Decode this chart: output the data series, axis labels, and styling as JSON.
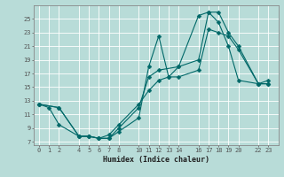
{
  "xlabel": "Humidex (Indice chaleur)",
  "background_color": "#b8dcd8",
  "grid_color": "#ffffff",
  "line_color": "#006868",
  "xlim": [
    -0.5,
    24.0
  ],
  "ylim": [
    6.5,
    27.0
  ],
  "xticks": [
    0,
    1,
    2,
    4,
    5,
    6,
    7,
    8,
    10,
    11,
    12,
    13,
    14,
    16,
    17,
    18,
    19,
    20,
    22,
    23
  ],
  "yticks": [
    7,
    9,
    11,
    13,
    15,
    17,
    19,
    21,
    23,
    25
  ],
  "line1_x": [
    0,
    1,
    2,
    4,
    5,
    6,
    7,
    8,
    10,
    11,
    12,
    13,
    14,
    16,
    17,
    18,
    19,
    20,
    22,
    23
  ],
  "line1_y": [
    12.5,
    12.0,
    9.5,
    7.8,
    7.8,
    7.5,
    7.5,
    8.5,
    10.5,
    18.0,
    22.5,
    16.5,
    18.0,
    25.5,
    26.0,
    24.5,
    21.0,
    16.0,
    15.5,
    16.0
  ],
  "line2_x": [
    0,
    2,
    4,
    5,
    6,
    7,
    8,
    10,
    11,
    12,
    14,
    16,
    17,
    18,
    19,
    20,
    22,
    23
  ],
  "line2_y": [
    12.5,
    12.0,
    7.8,
    7.8,
    7.5,
    7.5,
    9.0,
    12.0,
    16.5,
    17.5,
    18.0,
    19.0,
    26.0,
    26.0,
    23.0,
    21.0,
    15.5,
    15.5
  ],
  "line3_x": [
    0,
    2,
    4,
    5,
    6,
    7,
    8,
    10,
    11,
    12,
    13,
    14,
    16,
    17,
    18,
    19,
    20,
    22,
    23
  ],
  "line3_y": [
    12.5,
    12.0,
    7.8,
    7.8,
    7.5,
    8.0,
    9.5,
    12.5,
    14.5,
    16.0,
    16.5,
    16.5,
    17.5,
    23.5,
    23.0,
    22.5,
    20.5,
    15.5,
    15.5
  ]
}
